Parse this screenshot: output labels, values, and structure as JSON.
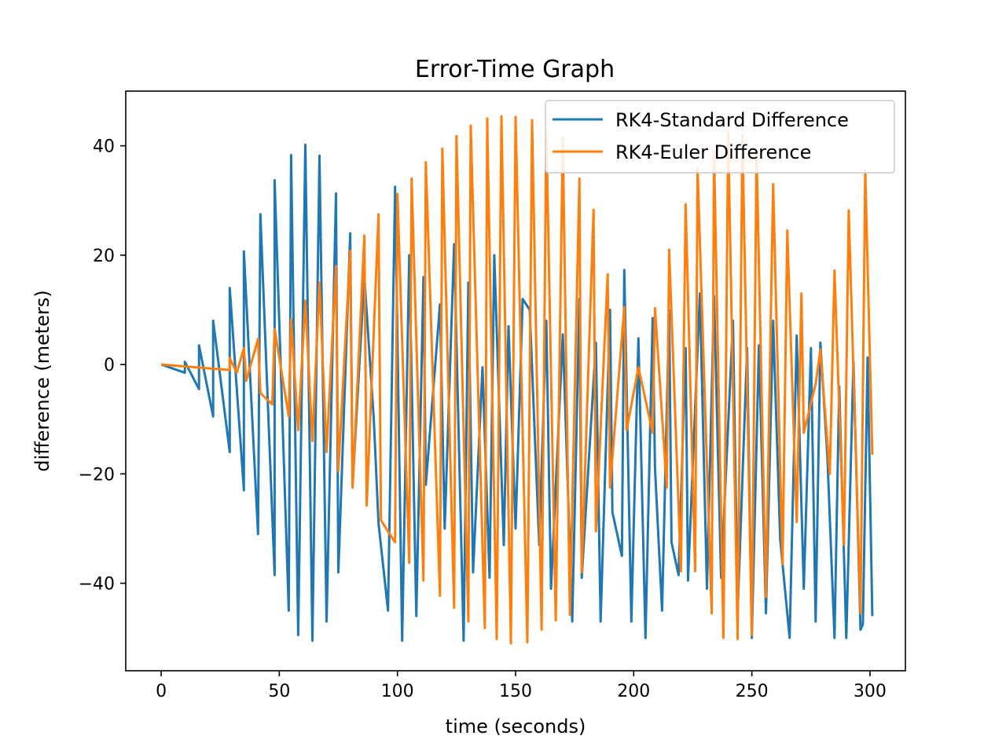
{
  "chart_data": {
    "type": "line",
    "title": "Error-Time Graph",
    "xlabel": "time (seconds)",
    "ylabel": "difference (meters)",
    "xlim": [
      -15,
      315
    ],
    "ylim": [
      -56,
      50
    ],
    "x_ticks": [
      0,
      50,
      100,
      150,
      200,
      250,
      300
    ],
    "y_ticks": [
      -40,
      -20,
      0,
      20,
      40
    ],
    "y_tick_labels": [
      "−40",
      "−20",
      "0",
      "20",
      "40"
    ],
    "grid": false,
    "legend_position": "top-right",
    "series": [
      {
        "name": "RK4-Standard Difference",
        "color": "#1f77b4",
        "points": [
          [
            0,
            0
          ],
          [
            10,
            -1.5
          ],
          [
            10,
            0.5
          ],
          [
            16,
            -4.5
          ],
          [
            16,
            3.5
          ],
          [
            22,
            -9.5
          ],
          [
            22,
            8
          ],
          [
            29,
            -16
          ],
          [
            29,
            14
          ],
          [
            35,
            -23
          ],
          [
            35,
            20.7
          ],
          [
            41,
            -31
          ],
          [
            42,
            27.5
          ],
          [
            48,
            -38.5
          ],
          [
            48,
            33.7
          ],
          [
            54,
            -45
          ],
          [
            55,
            38.3
          ],
          [
            58,
            -49.5
          ],
          [
            61,
            40.2
          ],
          [
            64,
            -50.5
          ],
          [
            67,
            38.2
          ],
          [
            70,
            -47
          ],
          [
            74,
            31.3
          ],
          [
            75,
            -38
          ],
          [
            80,
            24
          ],
          [
            81,
            -22
          ],
          [
            86,
            16
          ],
          [
            90,
            -10
          ],
          [
            92,
            -29
          ],
          [
            96,
            -45
          ],
          [
            99,
            32.5
          ],
          [
            102,
            -50.5
          ],
          [
            105,
            20
          ],
          [
            108,
            -46
          ],
          [
            111,
            16
          ],
          [
            112,
            -22
          ],
          [
            118,
            11
          ],
          [
            120,
            -30
          ],
          [
            124,
            22
          ],
          [
            128,
            -50.5
          ],
          [
            130,
            15
          ],
          [
            132,
            -38
          ],
          [
            136,
            -0.5
          ],
          [
            139,
            -39
          ],
          [
            141,
            20
          ],
          [
            145,
            -33
          ],
          [
            147,
            7
          ],
          [
            150,
            -30
          ],
          [
            153,
            12
          ],
          [
            156,
            10
          ],
          [
            160,
            -33
          ],
          [
            163,
            8
          ],
          [
            165,
            -41
          ],
          [
            170,
            5.5
          ],
          [
            174,
            -47
          ],
          [
            177,
            12
          ],
          [
            178,
            -39
          ],
          [
            184,
            4
          ],
          [
            186,
            -47
          ],
          [
            190,
            10
          ],
          [
            191,
            -27
          ],
          [
            195,
            -35
          ],
          [
            196,
            17.3
          ],
          [
            199,
            -47
          ],
          [
            202,
            4.8
          ],
          [
            205,
            -50
          ],
          [
            208,
            8.5
          ],
          [
            209,
            -19
          ],
          [
            212,
            -45
          ],
          [
            215,
            10
          ],
          [
            216,
            -32.5
          ],
          [
            219,
            -38.5
          ],
          [
            222,
            3
          ],
          [
            223,
            -39.5
          ],
          [
            228,
            13
          ],
          [
            231,
            -41
          ],
          [
            234,
            12.5
          ],
          [
            237,
            -39
          ],
          [
            242,
            8
          ],
          [
            244,
            -45
          ],
          [
            248,
            3
          ],
          [
            250,
            -50
          ],
          [
            253,
            3.5
          ],
          [
            256,
            -45.5
          ],
          [
            259,
            8
          ],
          [
            262,
            -32
          ],
          [
            266,
            -50
          ],
          [
            269,
            5.3
          ],
          [
            272,
            -41
          ],
          [
            275,
            3
          ],
          [
            277,
            -47
          ],
          [
            279,
            4
          ],
          [
            282,
            -17
          ],
          [
            285,
            -50
          ],
          [
            287,
            -4
          ],
          [
            290,
            -50
          ],
          [
            293,
            0.5
          ],
          [
            296,
            -48.5
          ],
          [
            297,
            -47.5
          ],
          [
            299,
            1.3
          ],
          [
            301,
            -46
          ]
        ]
      },
      {
        "name": "RK4-Euler Difference",
        "color": "#ff7f0e",
        "points": [
          [
            0,
            0
          ],
          [
            29,
            -1
          ],
          [
            29,
            1.2
          ],
          [
            32,
            -1.5
          ],
          [
            35,
            3
          ],
          [
            36,
            -3
          ],
          [
            41,
            4.7
          ],
          [
            42,
            -5.2
          ],
          [
            47,
            -7.3
          ],
          [
            48,
            6.5
          ],
          [
            54,
            -9.5
          ],
          [
            55,
            8.3
          ],
          [
            58,
            -12
          ],
          [
            61,
            11.7
          ],
          [
            64,
            -14
          ],
          [
            67,
            15
          ],
          [
            70,
            -16
          ],
          [
            74,
            18
          ],
          [
            75,
            -19.5
          ],
          [
            80,
            20.8
          ],
          [
            81,
            -22.5
          ],
          [
            86,
            23.6
          ],
          [
            87,
            -25.8
          ],
          [
            92,
            27.5
          ],
          [
            93,
            -28.5
          ],
          [
            99,
            -32.5
          ],
          [
            100,
            31.2
          ],
          [
            105,
            -36.3
          ],
          [
            106,
            34
          ],
          [
            111,
            -39.5
          ],
          [
            112,
            37
          ],
          [
            118,
            -42.3
          ],
          [
            119,
            39.5
          ],
          [
            124,
            -44.5
          ],
          [
            125,
            41.8
          ],
          [
            130,
            -47
          ],
          [
            131,
            43.7
          ],
          [
            137,
            -48.2
          ],
          [
            138,
            45
          ],
          [
            142,
            -50.2
          ],
          [
            144,
            45.4
          ],
          [
            148,
            -51
          ],
          [
            150,
            45.3
          ],
          [
            155,
            -50.8
          ],
          [
            157,
            44.7
          ],
          [
            161,
            -48.5
          ],
          [
            163,
            43.2
          ],
          [
            167,
            -46.8
          ],
          [
            170,
            41.5
          ],
          [
            173,
            -45.8
          ],
          [
            177,
            34
          ],
          [
            178,
            -38
          ],
          [
            183,
            28.3
          ],
          [
            184,
            -30.5
          ],
          [
            189,
            16.5
          ],
          [
            190,
            -22.5
          ],
          [
            196,
            10.5
          ],
          [
            197,
            -12
          ],
          [
            202,
            -0.5
          ],
          [
            208,
            -12.5
          ],
          [
            209,
            10.3
          ],
          [
            214,
            -22.5
          ],
          [
            215,
            21
          ],
          [
            220,
            -37.8
          ],
          [
            222,
            29.3
          ],
          [
            226,
            -37.8
          ],
          [
            227,
            36
          ],
          [
            233,
            -45.5
          ],
          [
            234,
            39
          ],
          [
            238,
            -50
          ],
          [
            240,
            42.3
          ],
          [
            244,
            -50.2
          ],
          [
            246,
            42
          ],
          [
            250,
            -49.5
          ],
          [
            252,
            38.8
          ],
          [
            256,
            -42.5
          ],
          [
            259,
            33
          ],
          [
            263,
            -36.5
          ],
          [
            265,
            24.5
          ],
          [
            269,
            -28.8
          ],
          [
            271,
            13
          ],
          [
            272,
            -12.5
          ],
          [
            277,
            -3.5
          ],
          [
            279,
            2.7
          ],
          [
            283,
            -20
          ],
          [
            285,
            17.2
          ],
          [
            289,
            -33
          ],
          [
            291,
            28.2
          ],
          [
            296,
            -45.5
          ],
          [
            298,
            35.5
          ],
          [
            301,
            -16.5
          ]
        ]
      }
    ]
  }
}
